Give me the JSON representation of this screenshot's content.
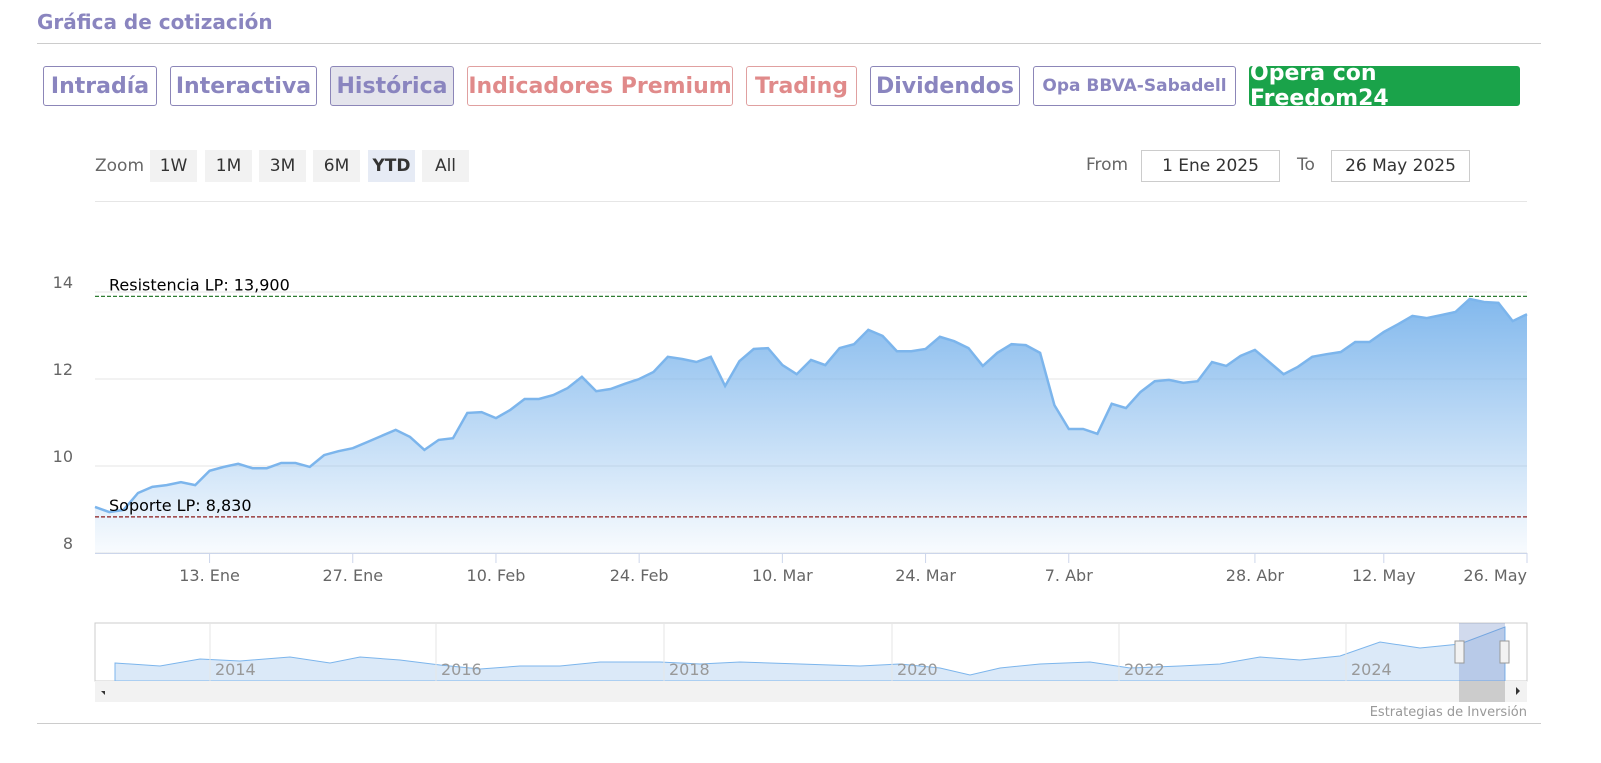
{
  "header": {
    "title": "Gráfica de cotización"
  },
  "tabs": [
    "Intradía",
    "Interactiva",
    "Histórica",
    "Indicadores Premium",
    "Trading",
    "Dividendos",
    "Opa BBVA-Sabadell",
    "Opera con Freedom24"
  ],
  "zoom": {
    "label": "Zoom",
    "buttons": [
      "1W",
      "1M",
      "3M",
      "6M",
      "YTD",
      "All"
    ],
    "selected": "YTD"
  },
  "range": {
    "from_label": "From",
    "from": "1 Ene 2025",
    "to_label": "To",
    "to": "26 May 2025"
  },
  "navigator": {
    "years": [
      "2014",
      "2016",
      "2018",
      "2020",
      "2022",
      "2024"
    ]
  },
  "credit": "Estrategias de Inversión",
  "chart_data": {
    "type": "area",
    "color": "#7cb5ec",
    "categories": [
      null,
      null,
      null,
      null,
      null,
      null,
      null,
      null,
      "13. Ene",
      null,
      null,
      null,
      null,
      null,
      null,
      null,
      null,
      null,
      "27. Ene",
      null,
      null,
      null,
      null,
      null,
      null,
      null,
      null,
      null,
      "10. Feb",
      null,
      null,
      null,
      null,
      null,
      null,
      null,
      null,
      null,
      "24. Feb",
      null,
      null,
      null,
      null,
      null,
      null,
      null,
      null,
      null,
      "10. Mar",
      null,
      null,
      null,
      null,
      null,
      null,
      null,
      null,
      null,
      "24. Mar",
      null,
      null,
      null,
      null,
      null,
      null,
      null,
      null,
      null,
      "7. Abr",
      null,
      null,
      null,
      null,
      null,
      null,
      null,
      null,
      null,
      null,
      null,
      null,
      "28. Abr",
      null,
      null,
      null,
      null,
      null,
      null,
      null,
      null,
      "12. May",
      null,
      null,
      null,
      null,
      null,
      null,
      null,
      null,
      null,
      "26. May"
    ],
    "values": [
      9.06,
      8.94,
      8.99,
      9.38,
      9.52,
      9.56,
      9.63,
      9.56,
      9.89,
      9.98,
      10.05,
      9.95,
      9.95,
      10.07,
      10.07,
      9.98,
      10.25,
      10.34,
      10.41,
      10.55,
      10.69,
      10.83,
      10.67,
      10.37,
      10.6,
      10.64,
      11.22,
      11.24,
      11.1,
      11.29,
      11.54,
      11.54,
      11.63,
      11.79,
      12.05,
      11.72,
      11.77,
      11.89,
      12,
      12.16,
      12.51,
      12.46,
      12.39,
      12.51,
      11.84,
      12.41,
      12.69,
      12.71,
      12.32,
      12.11,
      12.44,
      12.32,
      12.71,
      12.8,
      13.13,
      12.99,
      12.64,
      12.64,
      12.69,
      12.97,
      12.87,
      12.71,
      12.3,
      12.6,
      12.8,
      12.78,
      12.6,
      11.4,
      10.85,
      10.85,
      10.74,
      11.43,
      11.33,
      11.7,
      11.95,
      11.98,
      11.91,
      11.95,
      12.39,
      12.3,
      12.53,
      12.67,
      12.39,
      12.11,
      12.28,
      12.51,
      12.57,
      12.62,
      12.85,
      12.85,
      13.08,
      13.26,
      13.45,
      13.4,
      13.47,
      13.54,
      13.84,
      13.77,
      13.75,
      13.33,
      13.49
    ],
    "ylim": [
      8,
      16
    ],
    "yticks": [
      8,
      10,
      12,
      14
    ],
    "grid": true,
    "plot_lines": [
      {
        "label": "Resistencia LP: 13,900",
        "value": 13.9,
        "color": "#2e7d32"
      },
      {
        "label": "Soporte LP: 8,830",
        "value": 8.83,
        "color": "#8b1a1a"
      }
    ]
  }
}
